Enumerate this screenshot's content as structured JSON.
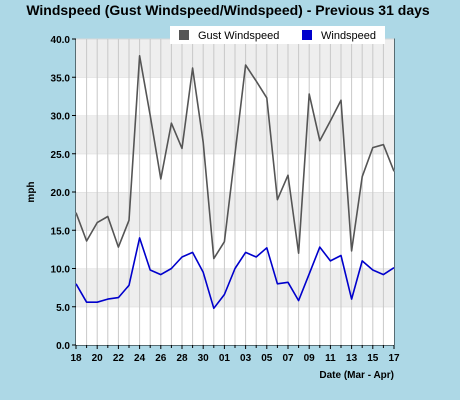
{
  "chart_data": {
    "type": "line",
    "title": "Windspeed (Gust Windspeed/Windspeed) - Previous 31 days",
    "xlabel": "Date (Mar - Apr)",
    "ylabel": "mph",
    "ylim": [
      0,
      40
    ],
    "yticks": [
      "0.0",
      "5.0",
      "10.0",
      "15.0",
      "20.0",
      "25.0",
      "30.0",
      "35.0",
      "40.0"
    ],
    "x_tick_labels": [
      "18",
      "20",
      "22",
      "24",
      "26",
      "28",
      "30",
      "01",
      "03",
      "05",
      "07",
      "09",
      "11",
      "13",
      "15",
      "17"
    ],
    "grid": true,
    "legend": "top-right",
    "series": [
      {
        "name": "Gust Windspeed",
        "color": "#555555",
        "values": [
          17.3,
          13.6,
          16.0,
          16.8,
          12.8,
          16.3,
          37.8,
          30.0,
          21.7,
          29.0,
          25.7,
          36.2,
          26.5,
          11.3,
          13.5,
          25.0,
          36.6,
          34.5,
          32.3,
          19.0,
          22.2,
          12.0,
          32.8,
          26.7,
          29.3,
          32.0,
          12.3,
          22.0,
          25.8,
          26.2,
          22.7
        ]
      },
      {
        "name": "Windspeed",
        "color": "#0000cc",
        "values": [
          8.0,
          5.6,
          5.6,
          6.0,
          6.2,
          7.8,
          14.0,
          9.8,
          9.2,
          10.0,
          11.5,
          12.1,
          9.5,
          4.8,
          6.6,
          10.0,
          12.1,
          11.5,
          12.7,
          8.0,
          8.2,
          5.8,
          9.3,
          12.8,
          11.0,
          11.7,
          6.0,
          11.0,
          9.8,
          9.2,
          10.1
        ]
      }
    ]
  }
}
